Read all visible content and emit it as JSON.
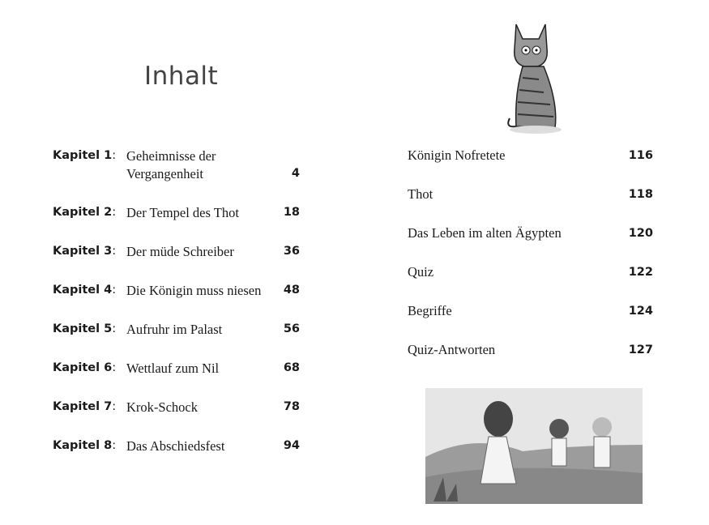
{
  "heading": "Inhalt",
  "chapters": [
    {
      "label": "Kapitel 1",
      "title_line1": "Geheimnisse der",
      "title_line2": "Vergangenheit",
      "page": "4"
    },
    {
      "label": "Kapitel 2",
      "title": "Der Tempel des Thot",
      "page": "18"
    },
    {
      "label": "Kapitel 3",
      "title": "Der müde Schreiber",
      "page": "36"
    },
    {
      "label": "Kapitel 4",
      "title": "Die Königin muss niesen",
      "page": "48"
    },
    {
      "label": "Kapitel 5",
      "title": "Aufruhr im Palast",
      "page": "56"
    },
    {
      "label": "Kapitel 6",
      "title": "Wettlauf zum Nil",
      "page": "68"
    },
    {
      "label": "Kapitel 7",
      "title": "Krok-Schock",
      "page": "78"
    },
    {
      "label": "Kapitel 8",
      "title": "Das Abschiedsfest",
      "page": "94"
    }
  ],
  "appendix": [
    {
      "title": "Königin Nofretete",
      "page": "116"
    },
    {
      "title": "Thot",
      "page": "118"
    },
    {
      "title": "Das Leben im alten Ägypten",
      "page": "120"
    },
    {
      "title": "Quiz",
      "page": "122"
    },
    {
      "title": "Begriffe",
      "page": "124"
    },
    {
      "title": "Quiz-Antworten",
      "page": "127"
    }
  ],
  "colon": ":"
}
